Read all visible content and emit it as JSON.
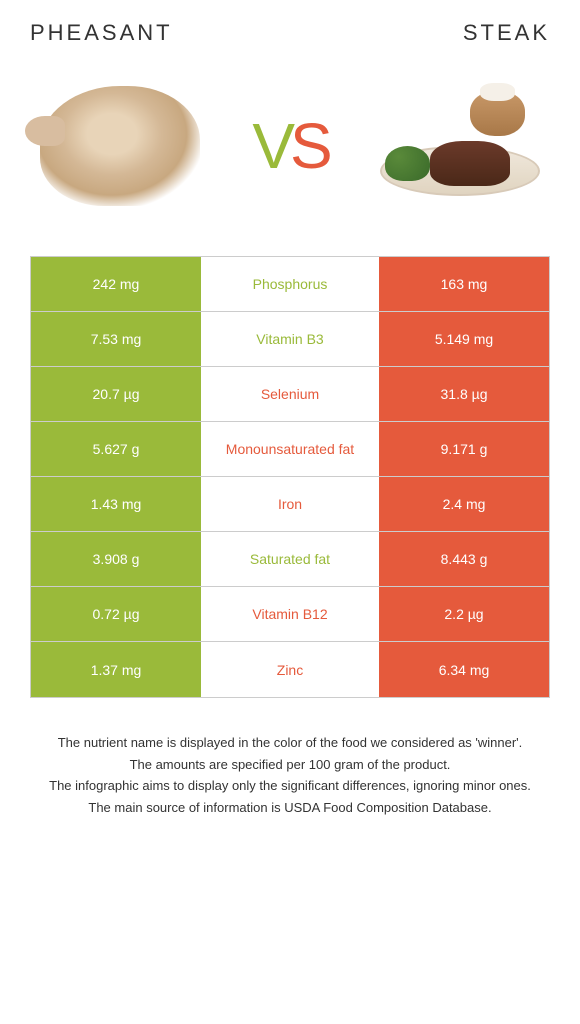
{
  "header": {
    "left_title": "Pheasant",
    "right_title": "Steak",
    "vs_v": "V",
    "vs_s": "S"
  },
  "colors": {
    "left": "#9aba3a",
    "right": "#e55a3c",
    "border": "#cccccc",
    "bg": "#ffffff",
    "text": "#333333"
  },
  "table": {
    "rows": [
      {
        "left": "242 mg",
        "label": "Phosphorus",
        "right": "163 mg",
        "winner": "left"
      },
      {
        "left": "7.53 mg",
        "label": "Vitamin B3",
        "right": "5.149 mg",
        "winner": "left"
      },
      {
        "left": "20.7 µg",
        "label": "Selenium",
        "right": "31.8 µg",
        "winner": "right"
      },
      {
        "left": "5.627 g",
        "label": "Monounsaturated fat",
        "right": "9.171 g",
        "winner": "right"
      },
      {
        "left": "1.43 mg",
        "label": "Iron",
        "right": "2.4 mg",
        "winner": "right"
      },
      {
        "left": "3.908 g",
        "label": "Saturated fat",
        "right": "8.443 g",
        "winner": "left"
      },
      {
        "left": "0.72 µg",
        "label": "Vitamin B12",
        "right": "2.2 µg",
        "winner": "right"
      },
      {
        "left": "1.37 mg",
        "label": "Zinc",
        "right": "6.34 mg",
        "winner": "right"
      }
    ]
  },
  "footer": {
    "line1": "The nutrient name is displayed in the color of the food we considered as 'winner'.",
    "line2": "The amounts are specified per 100 gram of the product.",
    "line3": "The infographic aims to display only the significant differences, ignoring minor ones.",
    "line4": "The main source of information is USDA Food Composition Database."
  }
}
